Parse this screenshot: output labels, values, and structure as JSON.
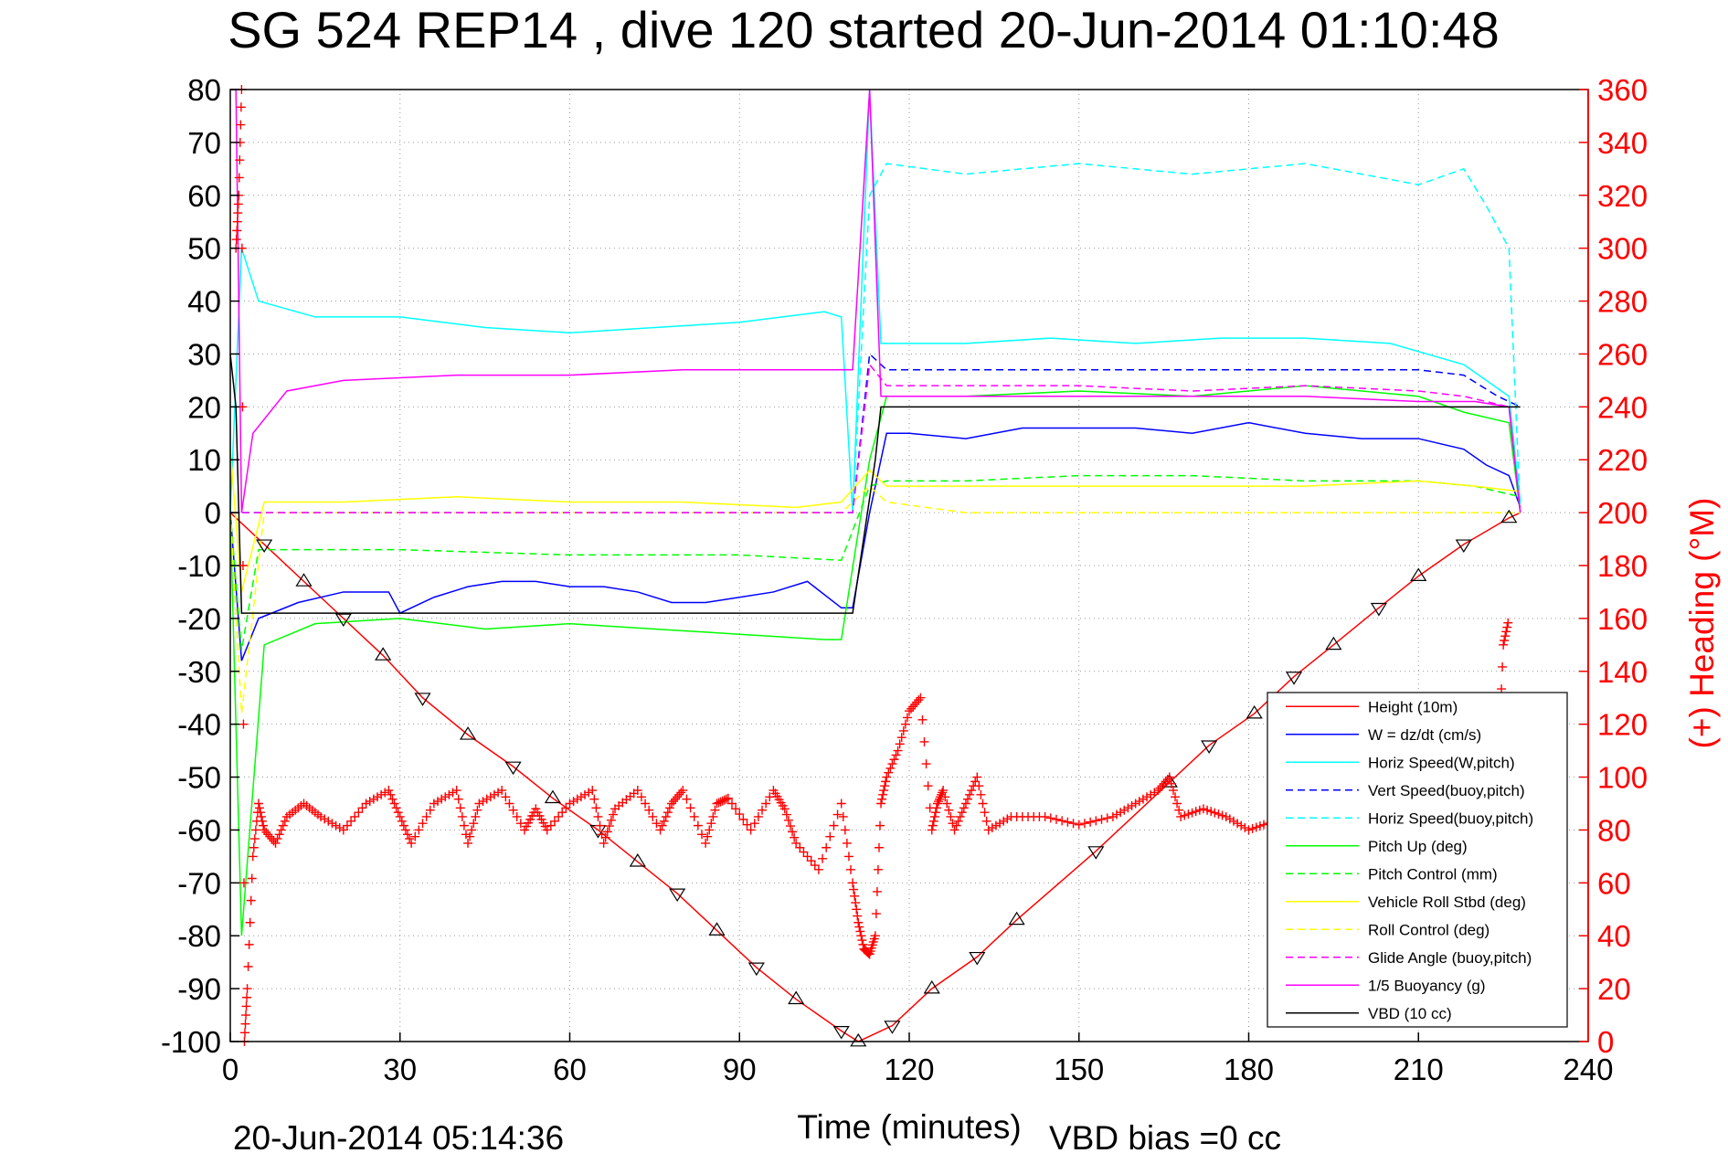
{
  "chart_data": {
    "type": "line",
    "title": "SG 524   REP14  , dive 120 started 20-Jun-2014 01:10:48",
    "xlabel": "Time (minutes)",
    "ylabel": "",
    "y2label": "(+) Heading (°M)",
    "xlim": [
      0,
      240
    ],
    "ylim": [
      -100,
      80
    ],
    "y2lim": [
      0,
      360
    ],
    "x_ticks": [
      "0",
      "30",
      "60",
      "90",
      "120",
      "150",
      "180",
      "210",
      "240"
    ],
    "y_ticks": [
      "80",
      "70",
      "60",
      "50",
      "40",
      "30",
      "20",
      "10",
      "0",
      "-10",
      "-20",
      "-30",
      "-40",
      "-50",
      "-60",
      "-70",
      "-80",
      "-90",
      "-100"
    ],
    "y2_ticks": [
      "360",
      "340",
      "320",
      "300",
      "280",
      "260",
      "240",
      "220",
      "200",
      "180",
      "160",
      "140",
      "120",
      "100",
      "80",
      "60",
      "40",
      "20",
      "0"
    ],
    "grid": true,
    "legend_position": "bottom-right",
    "footer_left": "20-Jun-2014 05:14:36",
    "footer_right": "VBD bias =0 cc",
    "series": [
      {
        "name": "Height (10m)",
        "color": "#ff0000",
        "style": "solid",
        "x": [
          0,
          6,
          13,
          20,
          27,
          34,
          42,
          50,
          57,
          65,
          72,
          79,
          86,
          93,
          100,
          108,
          111,
          113,
          117,
          124,
          132,
          139,
          153,
          166,
          173,
          181,
          188,
          195,
          203,
          210,
          218,
          226,
          228
        ],
        "y": [
          0,
          -6,
          -13,
          -20,
          -27,
          -35,
          -42,
          -48,
          -54,
          -60,
          -66,
          -72,
          -79,
          -86,
          -92,
          -98,
          -100,
          -99,
          -97,
          -90,
          -84,
          -77,
          -64,
          -51,
          -44,
          -38,
          -31,
          -25,
          -18,
          -12,
          -6,
          -1,
          0
        ]
      },
      {
        "name": "W = dz/dt (cm/s)",
        "color": "#0000ff",
        "style": "solid",
        "x": [
          0,
          2,
          5,
          12,
          20,
          28,
          30,
          36,
          42,
          48,
          54,
          60,
          66,
          72,
          78,
          84,
          90,
          96,
          102,
          108,
          110,
          113,
          116,
          120,
          130,
          140,
          150,
          160,
          170,
          180,
          190,
          200,
          210,
          218,
          222,
          226,
          228
        ],
        "y": [
          0,
          -28,
          -20,
          -17,
          -15,
          -15,
          -19,
          -16,
          -14,
          -13,
          -13,
          -14,
          -14,
          -15,
          -17,
          -17,
          -16,
          -15,
          -13,
          -18,
          -18,
          0,
          15,
          15,
          14,
          16,
          16,
          16,
          15,
          17,
          15,
          14,
          14,
          12,
          9,
          7,
          1
        ]
      },
      {
        "name": "Horiz Speed(W,pitch)",
        "color": "#00ffff",
        "style": "solid",
        "x": [
          0,
          2,
          5,
          15,
          30,
          45,
          60,
          75,
          90,
          105,
          108,
          110,
          113,
          115,
          130,
          145,
          160,
          175,
          190,
          205,
          218,
          222,
          226,
          228
        ],
        "y": [
          0,
          50,
          40,
          37,
          37,
          35,
          34,
          35,
          36,
          38,
          37,
          0,
          80,
          32,
          32,
          33,
          32,
          33,
          33,
          32,
          28,
          25,
          22,
          2
        ]
      },
      {
        "name": "Vert Speed(buoy,pitch)",
        "color": "#0000ff",
        "style": "dashed",
        "x": [
          0,
          110,
          113,
          116,
          130,
          150,
          170,
          190,
          210,
          218,
          224,
          228
        ],
        "y": [
          0,
          0,
          30,
          27,
          27,
          27,
          27,
          27,
          27,
          26,
          22,
          20
        ]
      },
      {
        "name": "Horiz Speed(buoy,pitch)",
        "color": "#00ffff",
        "style": "dashed",
        "x": [
          0,
          110,
          113,
          116,
          130,
          150,
          170,
          190,
          210,
          218,
          222,
          226,
          228
        ],
        "y": [
          0,
          0,
          60,
          66,
          64,
          66,
          64,
          66,
          62,
          65,
          58,
          50,
          0
        ]
      },
      {
        "name": "Pitch Up (deg)",
        "color": "#00ff00",
        "style": "solid",
        "x": [
          0,
          2,
          6,
          15,
          30,
          45,
          60,
          75,
          90,
          105,
          108,
          113,
          116,
          130,
          150,
          170,
          190,
          210,
          218,
          226,
          228
        ],
        "y": [
          0,
          -80,
          -25,
          -21,
          -20,
          -22,
          -21,
          -22,
          -23,
          -24,
          -24,
          10,
          22,
          22,
          23,
          22,
          24,
          22,
          19,
          17,
          0
        ]
      },
      {
        "name": "Pitch Control (mm)",
        "color": "#00ff00",
        "style": "dashed",
        "x": [
          0,
          2,
          5,
          15,
          30,
          60,
          90,
          108,
          113,
          116,
          130,
          150,
          170,
          190,
          210,
          220,
          228
        ],
        "y": [
          0,
          -26,
          -7,
          -7,
          -7,
          -8,
          -8,
          -9,
          5,
          6,
          6,
          7,
          7,
          6,
          6,
          5,
          3
        ]
      },
      {
        "name": "Vehicle Roll Stbd (deg)",
        "color": "#ffff00",
        "style": "solid",
        "x": [
          0,
          2,
          6,
          20,
          40,
          60,
          80,
          100,
          108,
          113,
          116,
          130,
          150,
          170,
          190,
          210,
          220,
          228
        ],
        "y": [
          12,
          -15,
          2,
          2,
          3,
          2,
          2,
          1,
          2,
          8,
          5,
          5,
          5,
          5,
          5,
          6,
          5,
          4
        ]
      },
      {
        "name": "Roll Control (deg)",
        "color": "#ffff00",
        "style": "dashed",
        "x": [
          0,
          2,
          6,
          20,
          40,
          60,
          80,
          100,
          108,
          113,
          116,
          130,
          150,
          170,
          190,
          210,
          220,
          228
        ],
        "y": [
          0,
          -38,
          0,
          0,
          0,
          0,
          0,
          0,
          0,
          5,
          2,
          0,
          0,
          0,
          0,
          0,
          0,
          0
        ]
      },
      {
        "name": "Glide Angle (buoy,pitch)",
        "color": "#ff00ff",
        "style": "dashed",
        "x": [
          0,
          110,
          113,
          116,
          130,
          150,
          170,
          190,
          210,
          218,
          226,
          228
        ],
        "y": [
          0,
          0,
          28,
          24,
          24,
          24,
          23,
          24,
          23,
          22,
          20,
          0
        ]
      },
      {
        "name": "1/5 Buoyancy (g)",
        "color": "#ff00ff",
        "style": "solid",
        "x": [
          0,
          1,
          2,
          4,
          10,
          20,
          40,
          60,
          80,
          100,
          109,
          110,
          113,
          115,
          130,
          150,
          170,
          190,
          210,
          220,
          226,
          228
        ],
        "y": [
          80,
          80,
          0,
          15,
          23,
          25,
          26,
          26,
          27,
          27,
          27,
          27,
          80,
          22,
          22,
          22,
          22,
          22,
          21,
          21,
          20,
          0
        ]
      },
      {
        "name": "VBD (10 cc)",
        "color": "#000000",
        "style": "solid",
        "x": [
          0,
          1,
          2,
          60,
          109,
          110,
          114,
          115,
          150,
          228
        ],
        "y": [
          30,
          20,
          -19,
          -19,
          -19,
          -19,
          10,
          20,
          20,
          20
        ]
      }
    ],
    "heading_series": {
      "name": "(+) Heading",
      "color": "#ff0000",
      "marker": "+",
      "x": [
        1,
        1.5,
        2,
        2.5,
        3,
        4,
        5,
        6,
        8,
        10,
        13,
        16,
        20,
        24,
        28,
        30,
        32,
        36,
        40,
        42,
        44,
        48,
        52,
        54,
        56,
        60,
        64,
        66,
        68,
        72,
        76,
        78,
        80,
        84,
        86,
        88,
        92,
        96,
        98,
        100,
        104,
        108,
        110,
        111,
        112,
        113,
        114,
        115,
        116,
        118,
        120,
        122,
        124,
        125,
        126,
        128,
        130,
        132,
        134,
        138,
        144,
        150,
        156,
        160,
        164,
        166,
        168,
        172,
        176,
        180,
        184,
        188,
        192,
        196,
        200,
        204,
        208,
        212,
        216,
        220,
        224,
        225,
        226
      ],
      "y": [
        300,
        320,
        360,
        0,
        20,
        70,
        90,
        80,
        75,
        85,
        90,
        85,
        80,
        90,
        95,
        85,
        75,
        90,
        95,
        75,
        90,
        95,
        80,
        88,
        80,
        90,
        95,
        75,
        88,
        95,
        80,
        90,
        95,
        75,
        90,
        92,
        80,
        95,
        88,
        75,
        65,
        90,
        60,
        45,
        35,
        33,
        40,
        90,
        100,
        110,
        125,
        130,
        80,
        90,
        95,
        80,
        90,
        100,
        80,
        85,
        85,
        82,
        85,
        90,
        95,
        100,
        85,
        88,
        85,
        80,
        83,
        85,
        82,
        84,
        86,
        84,
        85,
        83,
        84,
        85,
        100,
        150,
        160
      ]
    },
    "markers": {
      "height_markers_x": [
        6,
        13,
        20,
        27,
        34,
        42,
        50,
        57,
        65,
        72,
        79,
        86,
        93,
        100,
        108,
        111,
        117,
        124,
        132,
        139,
        153,
        166,
        173,
        181,
        188,
        195,
        203,
        210,
        218,
        226
      ],
      "height_markers_y": [
        -6,
        -13,
        -20,
        -27,
        -35,
        -42,
        -48,
        -54,
        -60,
        -66,
        -72,
        -79,
        -86,
        -92,
        -98,
        -100,
        -97,
        -90,
        -84,
        -77,
        -64,
        -51,
        -44,
        -38,
        -31,
        -25,
        -18,
        -12,
        -6,
        -1
      ]
    }
  }
}
